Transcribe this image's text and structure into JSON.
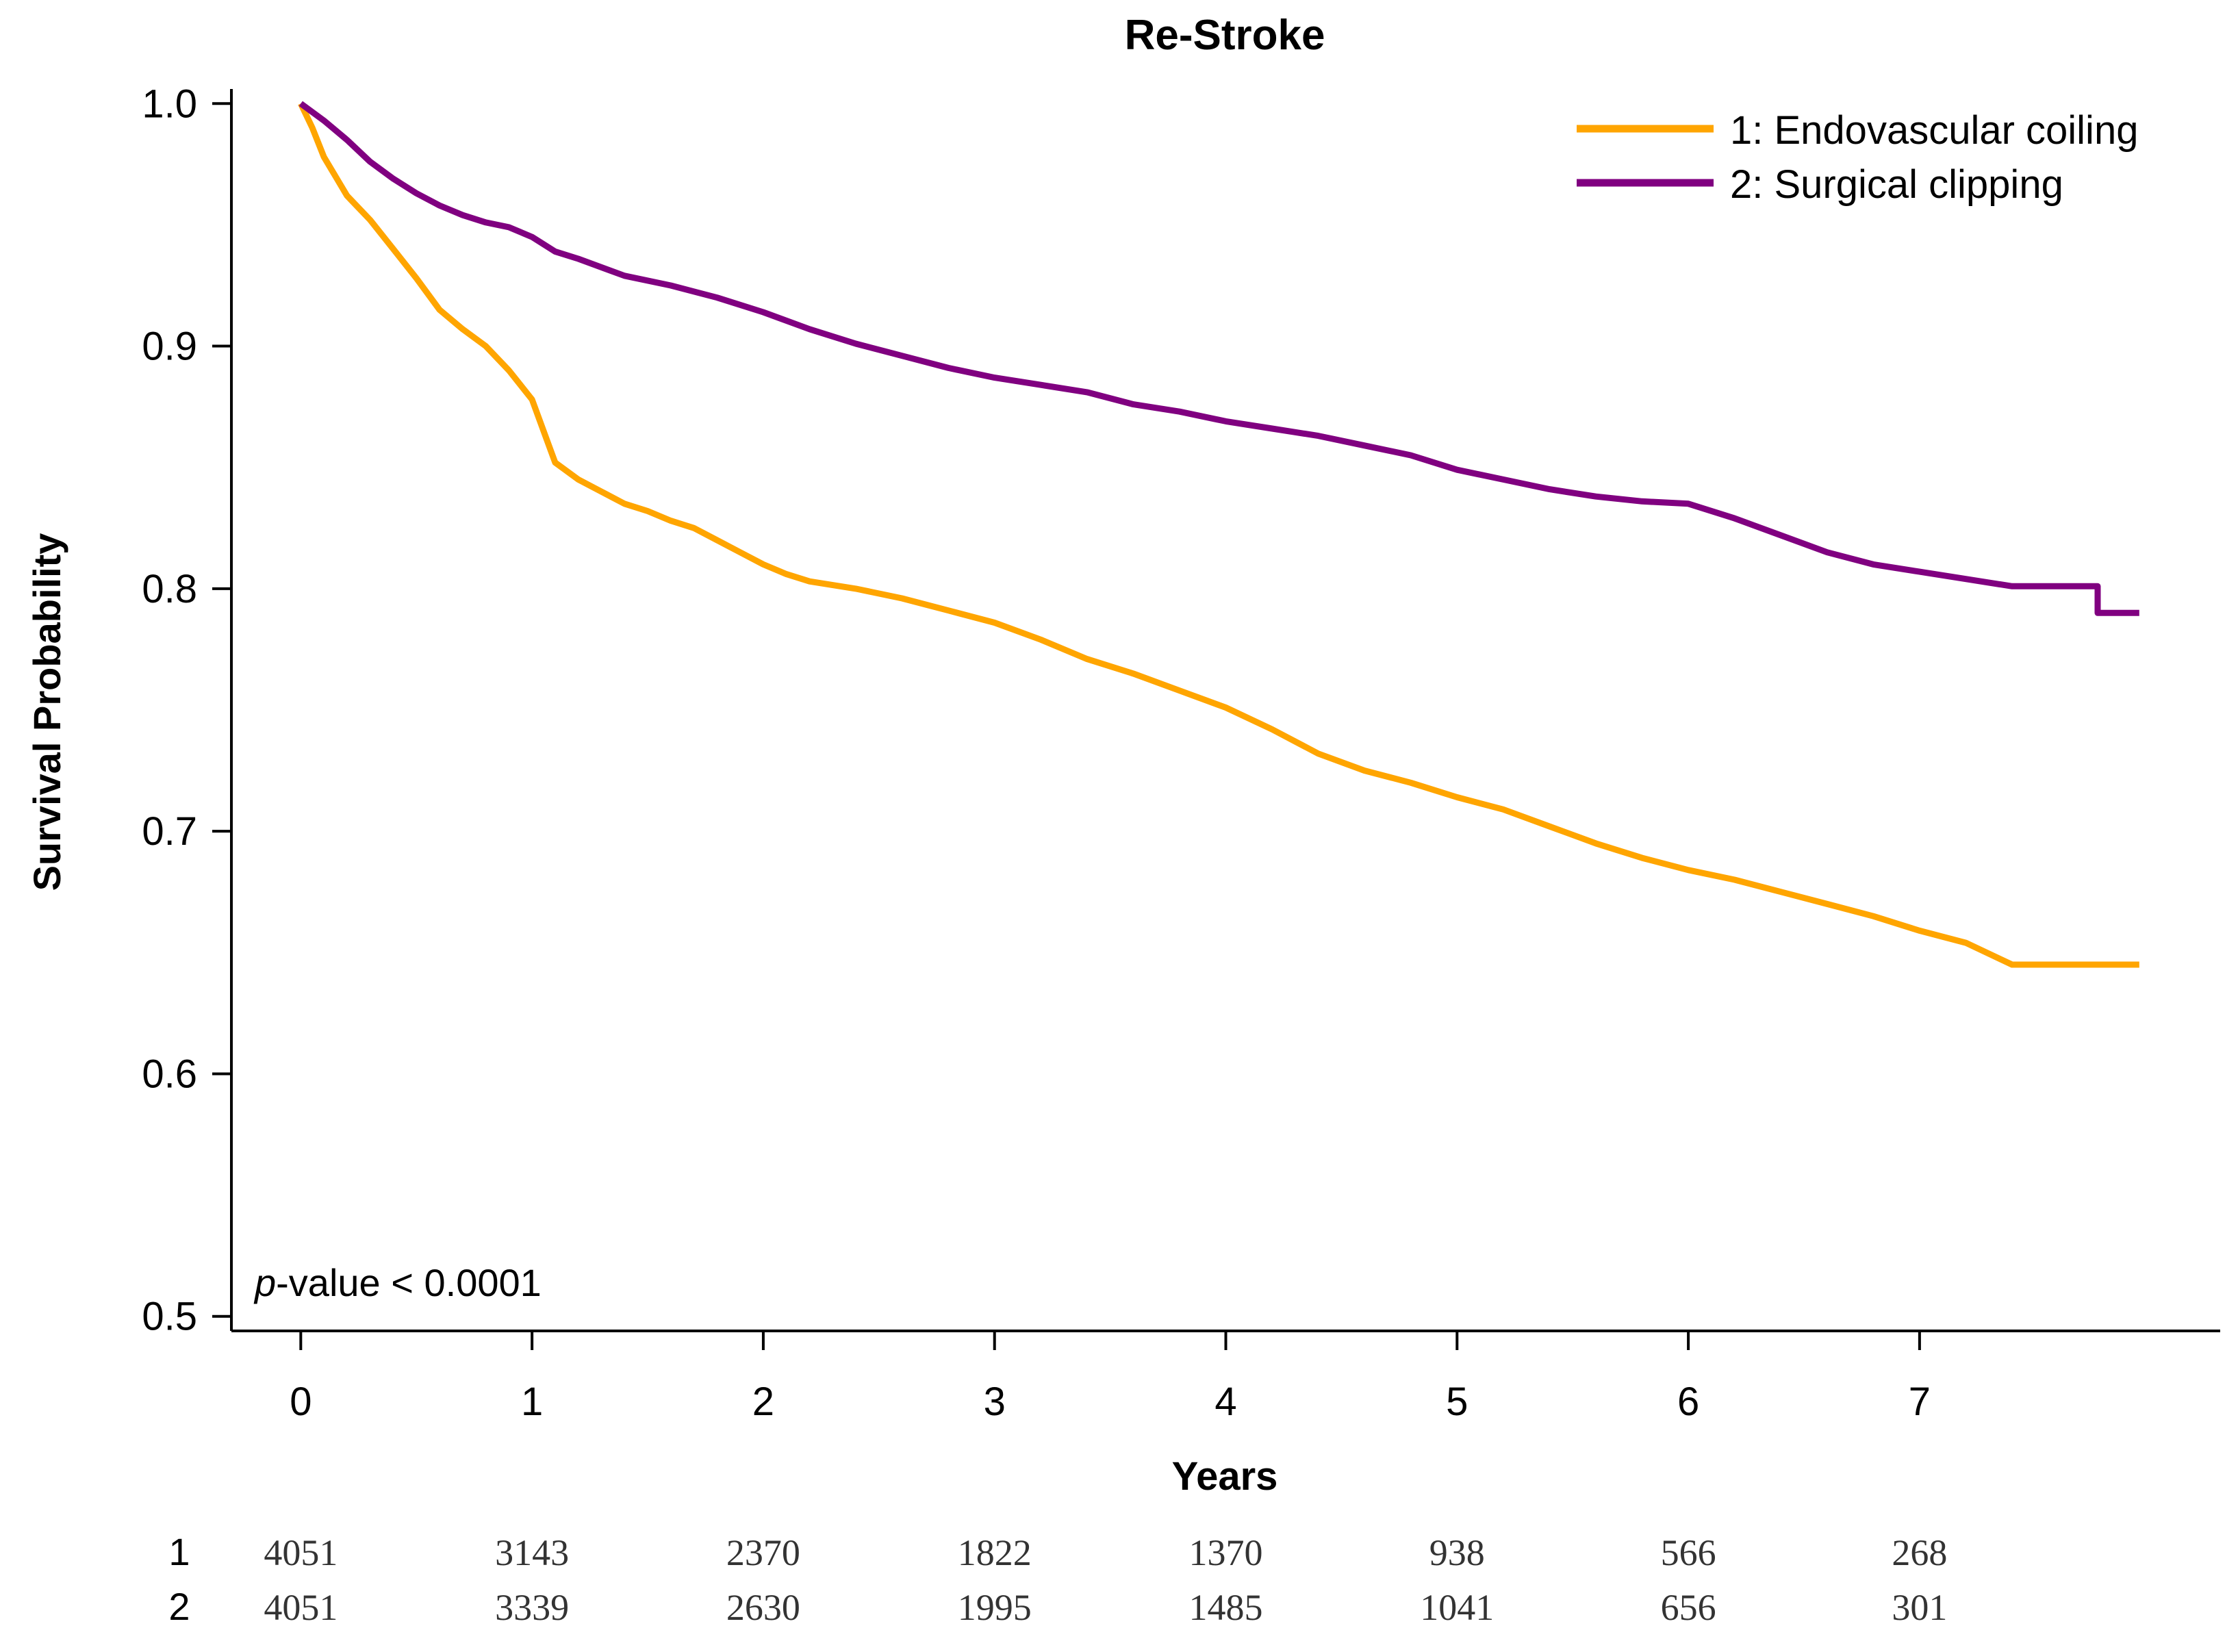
{
  "chart_data": {
    "type": "line",
    "title": "Re-Stroke",
    "xlabel": "Years",
    "ylabel": "Survival Probability",
    "xlim": [
      -0.3,
      8.3
    ],
    "ylim": [
      0.494,
      1.006
    ],
    "x_ticks": [
      0,
      1,
      2,
      3,
      4,
      5,
      6,
      7
    ],
    "x_tick_labels": [
      "0",
      "1",
      "2",
      "3",
      "4",
      "5",
      "6",
      "7"
    ],
    "y_ticks": [
      0.5,
      0.6,
      0.7,
      0.8,
      0.9,
      1.0
    ],
    "y_tick_labels": [
      "0.5",
      "0.6",
      "0.7",
      "0.8",
      "0.9",
      "1.0"
    ],
    "legend_position": "top-right",
    "annotation": {
      "italic": "p",
      "text": "-value < 0.0001"
    },
    "series": [
      {
        "name": "1: Endovascular coiling",
        "color": "#FFA500",
        "x": [
          0,
          0.05,
          0.1,
          0.15,
          0.2,
          0.3,
          0.4,
          0.5,
          0.6,
          0.7,
          0.8,
          0.9,
          1.0,
          1.05,
          1.1,
          1.2,
          1.3,
          1.4,
          1.5,
          1.6,
          1.7,
          1.8,
          1.9,
          2.0,
          2.1,
          2.2,
          2.4,
          2.6,
          2.8,
          3.0,
          3.2,
          3.4,
          3.6,
          3.8,
          4.0,
          4.2,
          4.4,
          4.6,
          4.8,
          5.0,
          5.2,
          5.4,
          5.6,
          5.8,
          6.0,
          6.2,
          6.4,
          6.6,
          6.8,
          7.0,
          7.2,
          7.4,
          7.6,
          7.8,
          7.95
        ],
        "y": [
          1.0,
          0.99,
          0.978,
          0.97,
          0.962,
          0.952,
          0.94,
          0.928,
          0.915,
          0.907,
          0.9,
          0.89,
          0.878,
          0.865,
          0.852,
          0.845,
          0.84,
          0.835,
          0.832,
          0.828,
          0.825,
          0.82,
          0.815,
          0.81,
          0.806,
          0.803,
          0.8,
          0.796,
          0.791,
          0.786,
          0.779,
          0.771,
          0.765,
          0.758,
          0.751,
          0.742,
          0.732,
          0.725,
          0.72,
          0.714,
          0.709,
          0.702,
          0.695,
          0.689,
          0.684,
          0.68,
          0.675,
          0.67,
          0.665,
          0.659,
          0.654,
          0.645,
          0.645,
          0.645,
          0.645
        ]
      },
      {
        "name": "2: Surgical clipping",
        "color": "#800080",
        "x": [
          0,
          0.1,
          0.2,
          0.3,
          0.4,
          0.5,
          0.6,
          0.7,
          0.8,
          0.9,
          1.0,
          1.1,
          1.2,
          1.4,
          1.6,
          1.8,
          2.0,
          2.2,
          2.4,
          2.6,
          2.8,
          3.0,
          3.2,
          3.4,
          3.6,
          3.8,
          4.0,
          4.2,
          4.4,
          4.6,
          4.8,
          5.0,
          5.2,
          5.4,
          5.6,
          5.8,
          6.0,
          6.2,
          6.4,
          6.6,
          6.8,
          7.0,
          7.2,
          7.4,
          7.6,
          7.77,
          7.77,
          7.95
        ],
        "y": [
          1.0,
          0.993,
          0.985,
          0.976,
          0.969,
          0.963,
          0.958,
          0.954,
          0.951,
          0.949,
          0.945,
          0.939,
          0.936,
          0.929,
          0.925,
          0.92,
          0.914,
          0.907,
          0.901,
          0.896,
          0.891,
          0.887,
          0.884,
          0.881,
          0.876,
          0.873,
          0.869,
          0.866,
          0.863,
          0.859,
          0.855,
          0.849,
          0.845,
          0.841,
          0.838,
          0.836,
          0.835,
          0.829,
          0.822,
          0.815,
          0.81,
          0.807,
          0.804,
          0.801,
          0.801,
          0.801,
          0.79,
          0.79
        ]
      }
    ],
    "risk_table": {
      "x": [
        0,
        1,
        2,
        3,
        4,
        5,
        6,
        7
      ],
      "rows": [
        {
          "label": "1",
          "values": [
            "4051",
            "3143",
            "2370",
            "1822",
            "1370",
            "938",
            "566",
            "268"
          ]
        },
        {
          "label": "2",
          "values": [
            "4051",
            "3339",
            "2630",
            "1995",
            "1485",
            "1041",
            "656",
            "301"
          ]
        }
      ]
    }
  }
}
